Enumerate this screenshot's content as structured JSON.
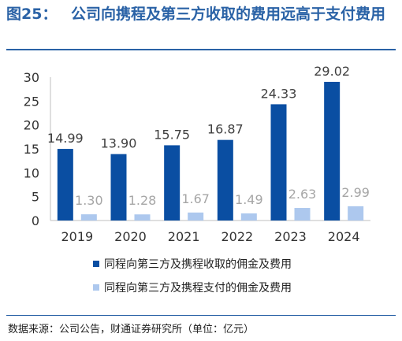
{
  "figure": {
    "label": "图25：",
    "title": "公司向携程及第三方收取的费用远高于支付费用",
    "source": "数据来源：公司公告，财通证券研究所（单位：亿元）"
  },
  "chart_data": {
    "type": "bar",
    "categories": [
      "2019",
      "2020",
      "2021",
      "2022",
      "2023",
      "2024"
    ],
    "series": [
      {
        "name": "同程向第三方及携程收取的佣金及费用",
        "values": [
          14.99,
          13.9,
          15.75,
          16.87,
          24.33,
          29.02
        ],
        "labels": [
          "14.99",
          "13.90",
          "15.75",
          "16.87",
          "24.33",
          "29.02"
        ],
        "color": "#0a4ea2"
      },
      {
        "name": "同程向第三方及携程支付的佣金及费用",
        "values": [
          1.3,
          1.28,
          1.67,
          1.49,
          2.63,
          2.99
        ],
        "labels": [
          "1.30",
          "1.28",
          "1.67",
          "1.49",
          "2.63",
          "2.99"
        ],
        "color": "#adc8ee"
      }
    ],
    "ylim": [
      0,
      30
    ],
    "yticks": [
      0,
      5,
      10,
      15,
      20,
      25,
      30
    ],
    "grid": false,
    "legend_position": "bottom"
  }
}
